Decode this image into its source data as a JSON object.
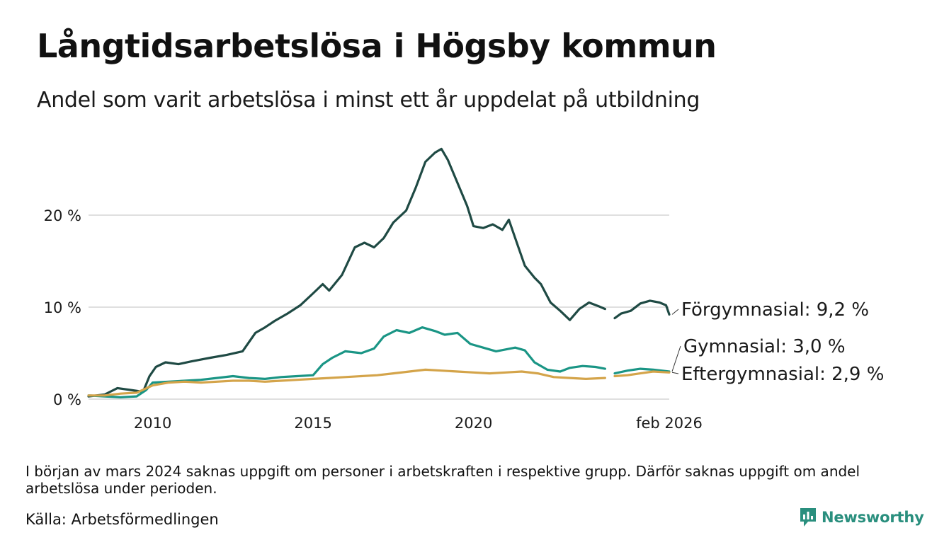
{
  "title": "Långtidsarbetslösa i Högsby kommun",
  "subtitle": "Andel som varit arbetslösa i minst ett år uppdelat på utbildning",
  "footnote": "I början av mars 2024 saknas uppgift om personer i arbetskraften i respektive grupp. Därför saknas uppgift om andel arbetslösa under perioden.",
  "source": "Källa: Arbetsförmedlingen",
  "brand": "Newsworthy",
  "colors": {
    "forgymnasial": "#1f4a44",
    "gymnasial": "#1a9585",
    "eftergymnasial": "#d4a44a",
    "grid": "#e0e0e0",
    "brand": "#2a8f7e"
  },
  "chart_data": {
    "type": "line",
    "title": "Långtidsarbetslösa i Högsby kommun",
    "xlabel": "",
    "ylabel": "",
    "xlim": [
      2008.0,
      2026.1
    ],
    "ylim": [
      0,
      28
    ],
    "x_ticks": [
      {
        "value": 2010,
        "label": "2010"
      },
      {
        "value": 2015,
        "label": "2015"
      },
      {
        "value": 2020,
        "label": "2020"
      },
      {
        "value": 2026.1,
        "label": "feb 2026"
      }
    ],
    "y_ticks": [
      {
        "value": 0,
        "label": "0 %"
      },
      {
        "value": 10,
        "label": "10 %"
      },
      {
        "value": 20,
        "label": "20 %"
      }
    ],
    "gap": [
      2024.15,
      2024.35
    ],
    "series": [
      {
        "name": "Förgymnasial",
        "end_label": "Förgymnasial: 9,2 %",
        "color_key": "forgymnasial",
        "x": [
          2008.0,
          2008.5,
          2008.9,
          2009.3,
          2009.7,
          2009.9,
          2010.1,
          2010.4,
          2010.8,
          2011.2,
          2011.8,
          2012.3,
          2012.8,
          2013.2,
          2013.5,
          2013.8,
          2014.2,
          2014.6,
          2015.0,
          2015.3,
          2015.5,
          2015.9,
          2016.3,
          2016.6,
          2016.9,
          2017.2,
          2017.5,
          2017.9,
          2018.2,
          2018.5,
          2018.8,
          2019.0,
          2019.2,
          2019.5,
          2019.8,
          2020.0,
          2020.3,
          2020.6,
          2020.9,
          2021.1,
          2021.3,
          2021.6,
          2021.9,
          2022.1,
          2022.4,
          2022.7,
          2023.0,
          2023.3,
          2023.6,
          2023.9,
          2024.1,
          2024.4,
          2024.6,
          2024.9,
          2025.2,
          2025.5,
          2025.8,
          2026.0,
          2026.1
        ],
        "y": [
          0.3,
          0.5,
          1.2,
          1.0,
          0.8,
          2.5,
          3.5,
          4.0,
          3.8,
          4.1,
          4.5,
          4.8,
          5.2,
          7.2,
          7.8,
          8.5,
          9.3,
          10.2,
          11.5,
          12.5,
          11.8,
          13.5,
          16.5,
          17.0,
          16.5,
          17.5,
          19.2,
          20.5,
          23.0,
          25.8,
          26.8,
          27.2,
          26.0,
          23.5,
          21.0,
          18.8,
          18.6,
          19.0,
          18.4,
          19.5,
          17.5,
          14.5,
          13.2,
          12.5,
          10.5,
          9.6,
          8.6,
          9.8,
          10.5,
          10.1,
          9.8,
          8.8,
          9.3,
          9.6,
          10.4,
          10.7,
          10.5,
          10.2,
          9.2
        ]
      },
      {
        "name": "Gymnasial",
        "end_label": "Gymnasial: 3,0 %",
        "color_key": "gymnasial",
        "x": [
          2008.0,
          2008.5,
          2009.0,
          2009.5,
          2009.8,
          2010.0,
          2010.5,
          2011.0,
          2011.5,
          2012.0,
          2012.5,
          2013.0,
          2013.5,
          2014.0,
          2014.5,
          2015.0,
          2015.3,
          2015.6,
          2016.0,
          2016.5,
          2016.9,
          2017.2,
          2017.6,
          2018.0,
          2018.4,
          2018.8,
          2019.1,
          2019.5,
          2019.9,
          2020.3,
          2020.7,
          2021.0,
          2021.3,
          2021.6,
          2021.9,
          2022.3,
          2022.7,
          2023.0,
          2023.4,
          2023.8,
          2024.1,
          2024.4,
          2024.8,
          2025.2,
          2025.6,
          2026.1
        ],
        "y": [
          0.4,
          0.3,
          0.2,
          0.3,
          1.0,
          1.8,
          1.9,
          2.0,
          2.1,
          2.3,
          2.5,
          2.3,
          2.2,
          2.4,
          2.5,
          2.6,
          3.8,
          4.5,
          5.2,
          5.0,
          5.5,
          6.8,
          7.5,
          7.2,
          7.8,
          7.4,
          7.0,
          7.2,
          6.0,
          5.6,
          5.2,
          5.4,
          5.6,
          5.3,
          4.0,
          3.2,
          3.0,
          3.4,
          3.6,
          3.5,
          3.3,
          2.8,
          3.1,
          3.3,
          3.2,
          3.0
        ]
      },
      {
        "name": "Eftergymnasial",
        "end_label": "Eftergymnasial: 2,9 %",
        "color_key": "eftergymnasial",
        "x": [
          2008.0,
          2008.5,
          2009.0,
          2009.5,
          2010.0,
          2010.5,
          2011.0,
          2011.5,
          2012.0,
          2012.5,
          2013.0,
          2013.5,
          2014.0,
          2014.5,
          2015.0,
          2015.5,
          2016.0,
          2016.5,
          2017.0,
          2017.5,
          2018.0,
          2018.5,
          2019.0,
          2019.5,
          2020.0,
          2020.5,
          2021.0,
          2021.5,
          2022.0,
          2022.5,
          2023.0,
          2023.5,
          2024.1,
          2024.4,
          2024.8,
          2025.2,
          2025.6,
          2026.1
        ],
        "y": [
          0.4,
          0.4,
          0.6,
          0.7,
          1.5,
          1.8,
          1.9,
          1.8,
          1.9,
          2.0,
          2.0,
          1.9,
          2.0,
          2.1,
          2.2,
          2.3,
          2.4,
          2.5,
          2.6,
          2.8,
          3.0,
          3.2,
          3.1,
          3.0,
          2.9,
          2.8,
          2.9,
          3.0,
          2.8,
          2.4,
          2.3,
          2.2,
          2.3,
          2.5,
          2.6,
          2.8,
          3.0,
          2.9
        ]
      }
    ]
  }
}
